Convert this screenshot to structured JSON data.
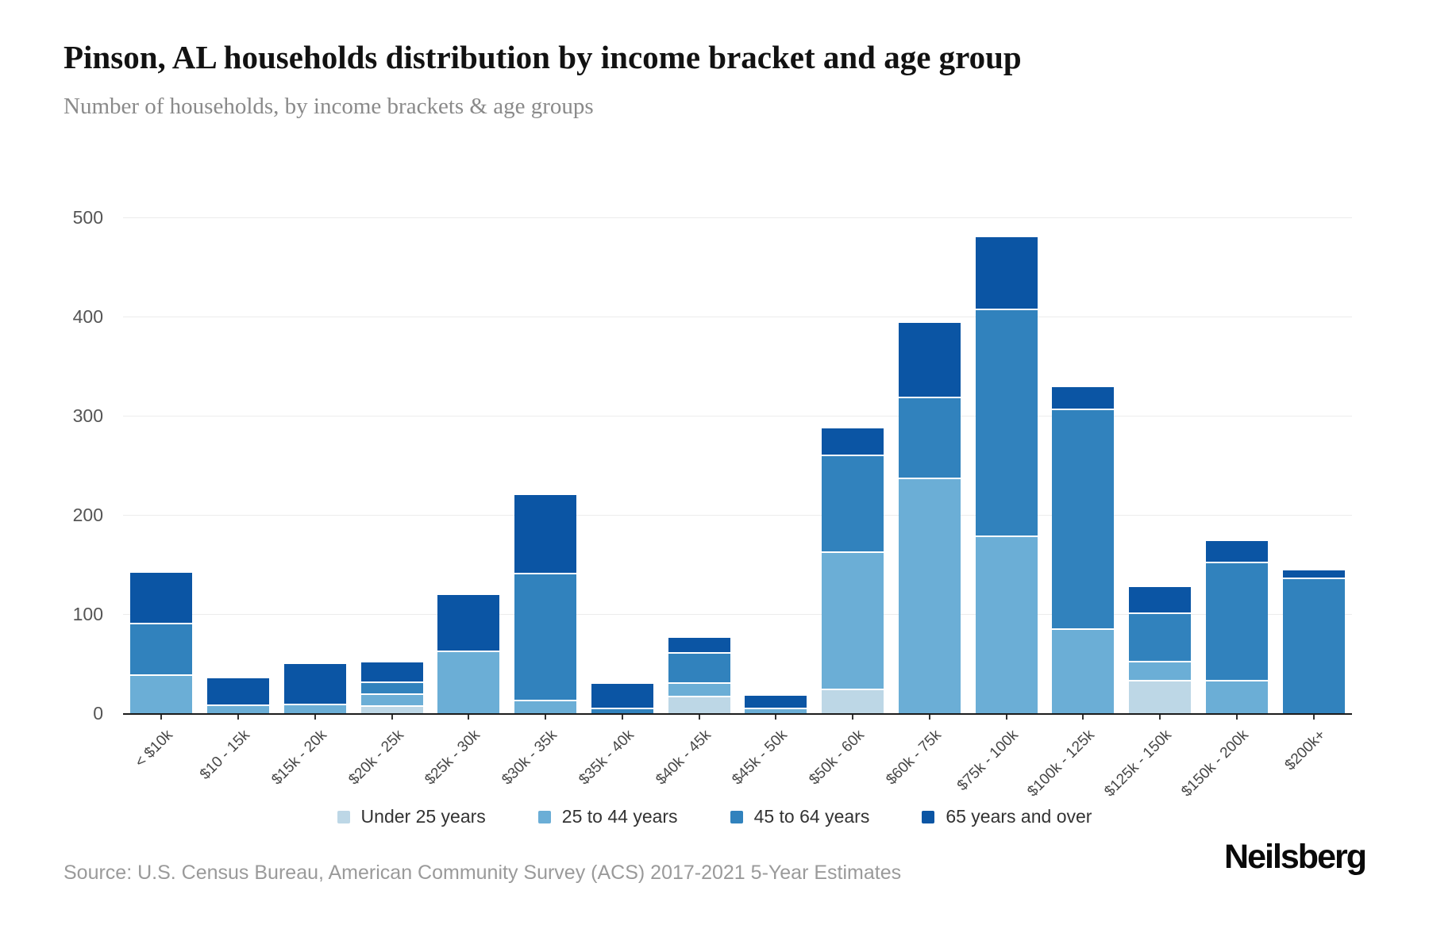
{
  "footer": {
    "source": "Source: U.S. Census Bureau, American Community Survey (ACS) 2017-2021 5-Year Estimates",
    "logo": "Neilsberg"
  },
  "chart_data": {
    "type": "bar",
    "stacked": true,
    "title": "Pinson, AL households distribution by income bracket and age group",
    "subtitle": "Number of households, by income brackets & age groups",
    "xlabel": "",
    "ylabel": "",
    "ylim": [
      0,
      500
    ],
    "y_ticks": [
      0,
      100,
      200,
      300,
      400,
      500
    ],
    "grid": true,
    "legend_position": "bottom",
    "categories": [
      "< $10k",
      "$10 - 15k",
      "$15k - 20k",
      "$20k - 25k",
      "$25k - 30k",
      "$30k - 35k",
      "$35k - 40k",
      "$40k - 45k",
      "$45k - 50k",
      "$50k - 60k",
      "$60k - 75k",
      "$75k - 100k",
      "$100k - 125k",
      "$125k - 150k",
      "$150k - 200k",
      "$200k+"
    ],
    "series": [
      {
        "name": "Under 25 years",
        "color": "#bdd7e6",
        "values": [
          0,
          0,
          0,
          8,
          0,
          0,
          0,
          18,
          0,
          25,
          0,
          0,
          0,
          34,
          0,
          0
        ]
      },
      {
        "name": "25 to 44 years",
        "color": "#6baed6",
        "values": [
          39,
          9,
          10,
          12,
          63,
          14,
          0,
          13,
          6,
          138,
          238,
          179,
          86,
          19,
          34,
          0
        ]
      },
      {
        "name": "45 to 64 years",
        "color": "#3182bd",
        "values": [
          52,
          0,
          0,
          12,
          0,
          128,
          6,
          31,
          0,
          98,
          81,
          229,
          221,
          49,
          119,
          137
        ]
      },
      {
        "name": "65 years and over",
        "color": "#0b55a4",
        "values": [
          51,
          26,
          40,
          19,
          56,
          78,
          24,
          14,
          12,
          26,
          75,
          72,
          22,
          25,
          21,
          7
        ]
      }
    ]
  }
}
